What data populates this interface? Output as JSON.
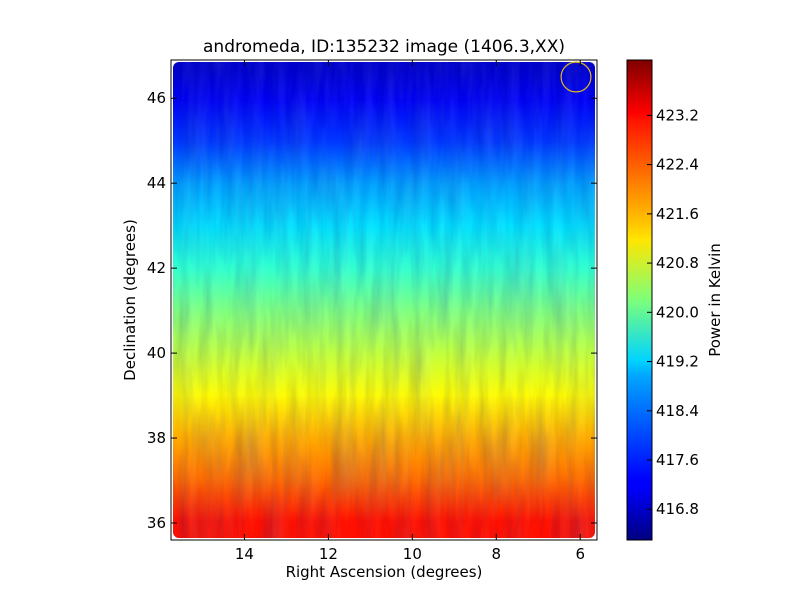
{
  "chart_data": {
    "type": "heatmap",
    "title": "andromeda, ID:135232 image (1406.3,XX)",
    "xlabel": "Right Ascension (degrees)",
    "ylabel": "Declination (degrees)",
    "xlim": [
      15.75,
      5.6
    ],
    "ylim": [
      35.6,
      46.9
    ],
    "x_ticks": [
      14,
      12,
      10,
      8,
      6
    ],
    "y_ticks": [
      36,
      38,
      40,
      42,
      44,
      46
    ],
    "x_tick_labels": [
      "14",
      "12",
      "10",
      "8",
      "6"
    ],
    "y_tick_labels": [
      "36",
      "38",
      "40",
      "42",
      "44",
      "46"
    ],
    "grid": false,
    "colormap": "jet",
    "colorbar": {
      "label": "Power in Kelvin",
      "range": [
        416.3,
        424.1
      ],
      "ticks": [
        416.8,
        417.6,
        418.4,
        419.2,
        420.0,
        420.8,
        421.6,
        422.4,
        423.2
      ],
      "tick_labels": [
        "416.8",
        "417.6",
        "418.4",
        "419.2",
        "420.0",
        "420.8",
        "421.6",
        "422.4",
        "423.2"
      ]
    },
    "values_by_declination": [
      {
        "dec": 46.7,
        "power": 416.9
      },
      {
        "dec": 46.0,
        "power": 417.2
      },
      {
        "dec": 45.0,
        "power": 417.7
      },
      {
        "dec": 44.0,
        "power": 418.5
      },
      {
        "dec": 43.0,
        "power": 419.0
      },
      {
        "dec": 42.0,
        "power": 419.6
      },
      {
        "dec": 41.0,
        "power": 420.2
      },
      {
        "dec": 40.0,
        "power": 420.7
      },
      {
        "dec": 39.0,
        "power": 421.2
      },
      {
        "dec": 38.0,
        "power": 421.8
      },
      {
        "dec": 37.0,
        "power": 422.3
      },
      {
        "dec": 36.0,
        "power": 423.0
      }
    ],
    "beam_marker": {
      "ra": 6.1,
      "dec": 46.5,
      "radius_deg": 0.35,
      "color": "#e3b71f"
    }
  }
}
